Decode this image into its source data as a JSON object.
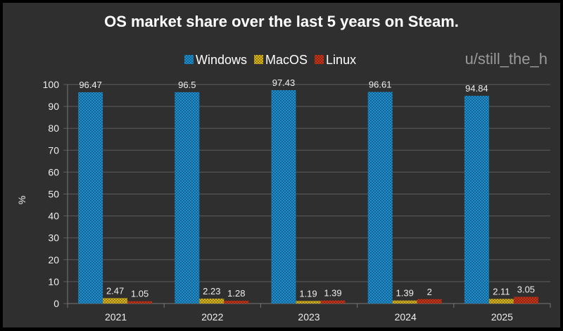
{
  "chart_data": {
    "type": "bar",
    "title": "OS market share over the last 5 years on Steam.",
    "watermark": "u/still_the_h",
    "xlabel": "",
    "ylabel": "%",
    "ylim": [
      0,
      100
    ],
    "yticks": [
      0,
      10,
      20,
      30,
      40,
      50,
      60,
      70,
      80,
      90,
      100
    ],
    "grid": true,
    "legend_position": "top",
    "categories": [
      "2021",
      "2022",
      "2023",
      "2024",
      "2025"
    ],
    "series": [
      {
        "name": "Windows",
        "color": "#1f8fd0",
        "values": [
          96.47,
          96.5,
          97.43,
          96.61,
          94.84
        ]
      },
      {
        "name": "MacOS",
        "color": "#d8b41e",
        "values": [
          2.47,
          2.23,
          1.19,
          1.39,
          2.11
        ]
      },
      {
        "name": "Linux",
        "color": "#c8361a",
        "values": [
          1.05,
          1.28,
          1.39,
          2,
          3.05
        ]
      }
    ],
    "data_labels": [
      [
        "96.47",
        "96.5",
        "97.43",
        "96.61",
        "94.84"
      ],
      [
        "2.47",
        "2.23",
        "1.19",
        "1.39",
        "2.11"
      ],
      [
        "1.05",
        "1.28",
        "1.39",
        "2",
        "3.05"
      ]
    ]
  }
}
